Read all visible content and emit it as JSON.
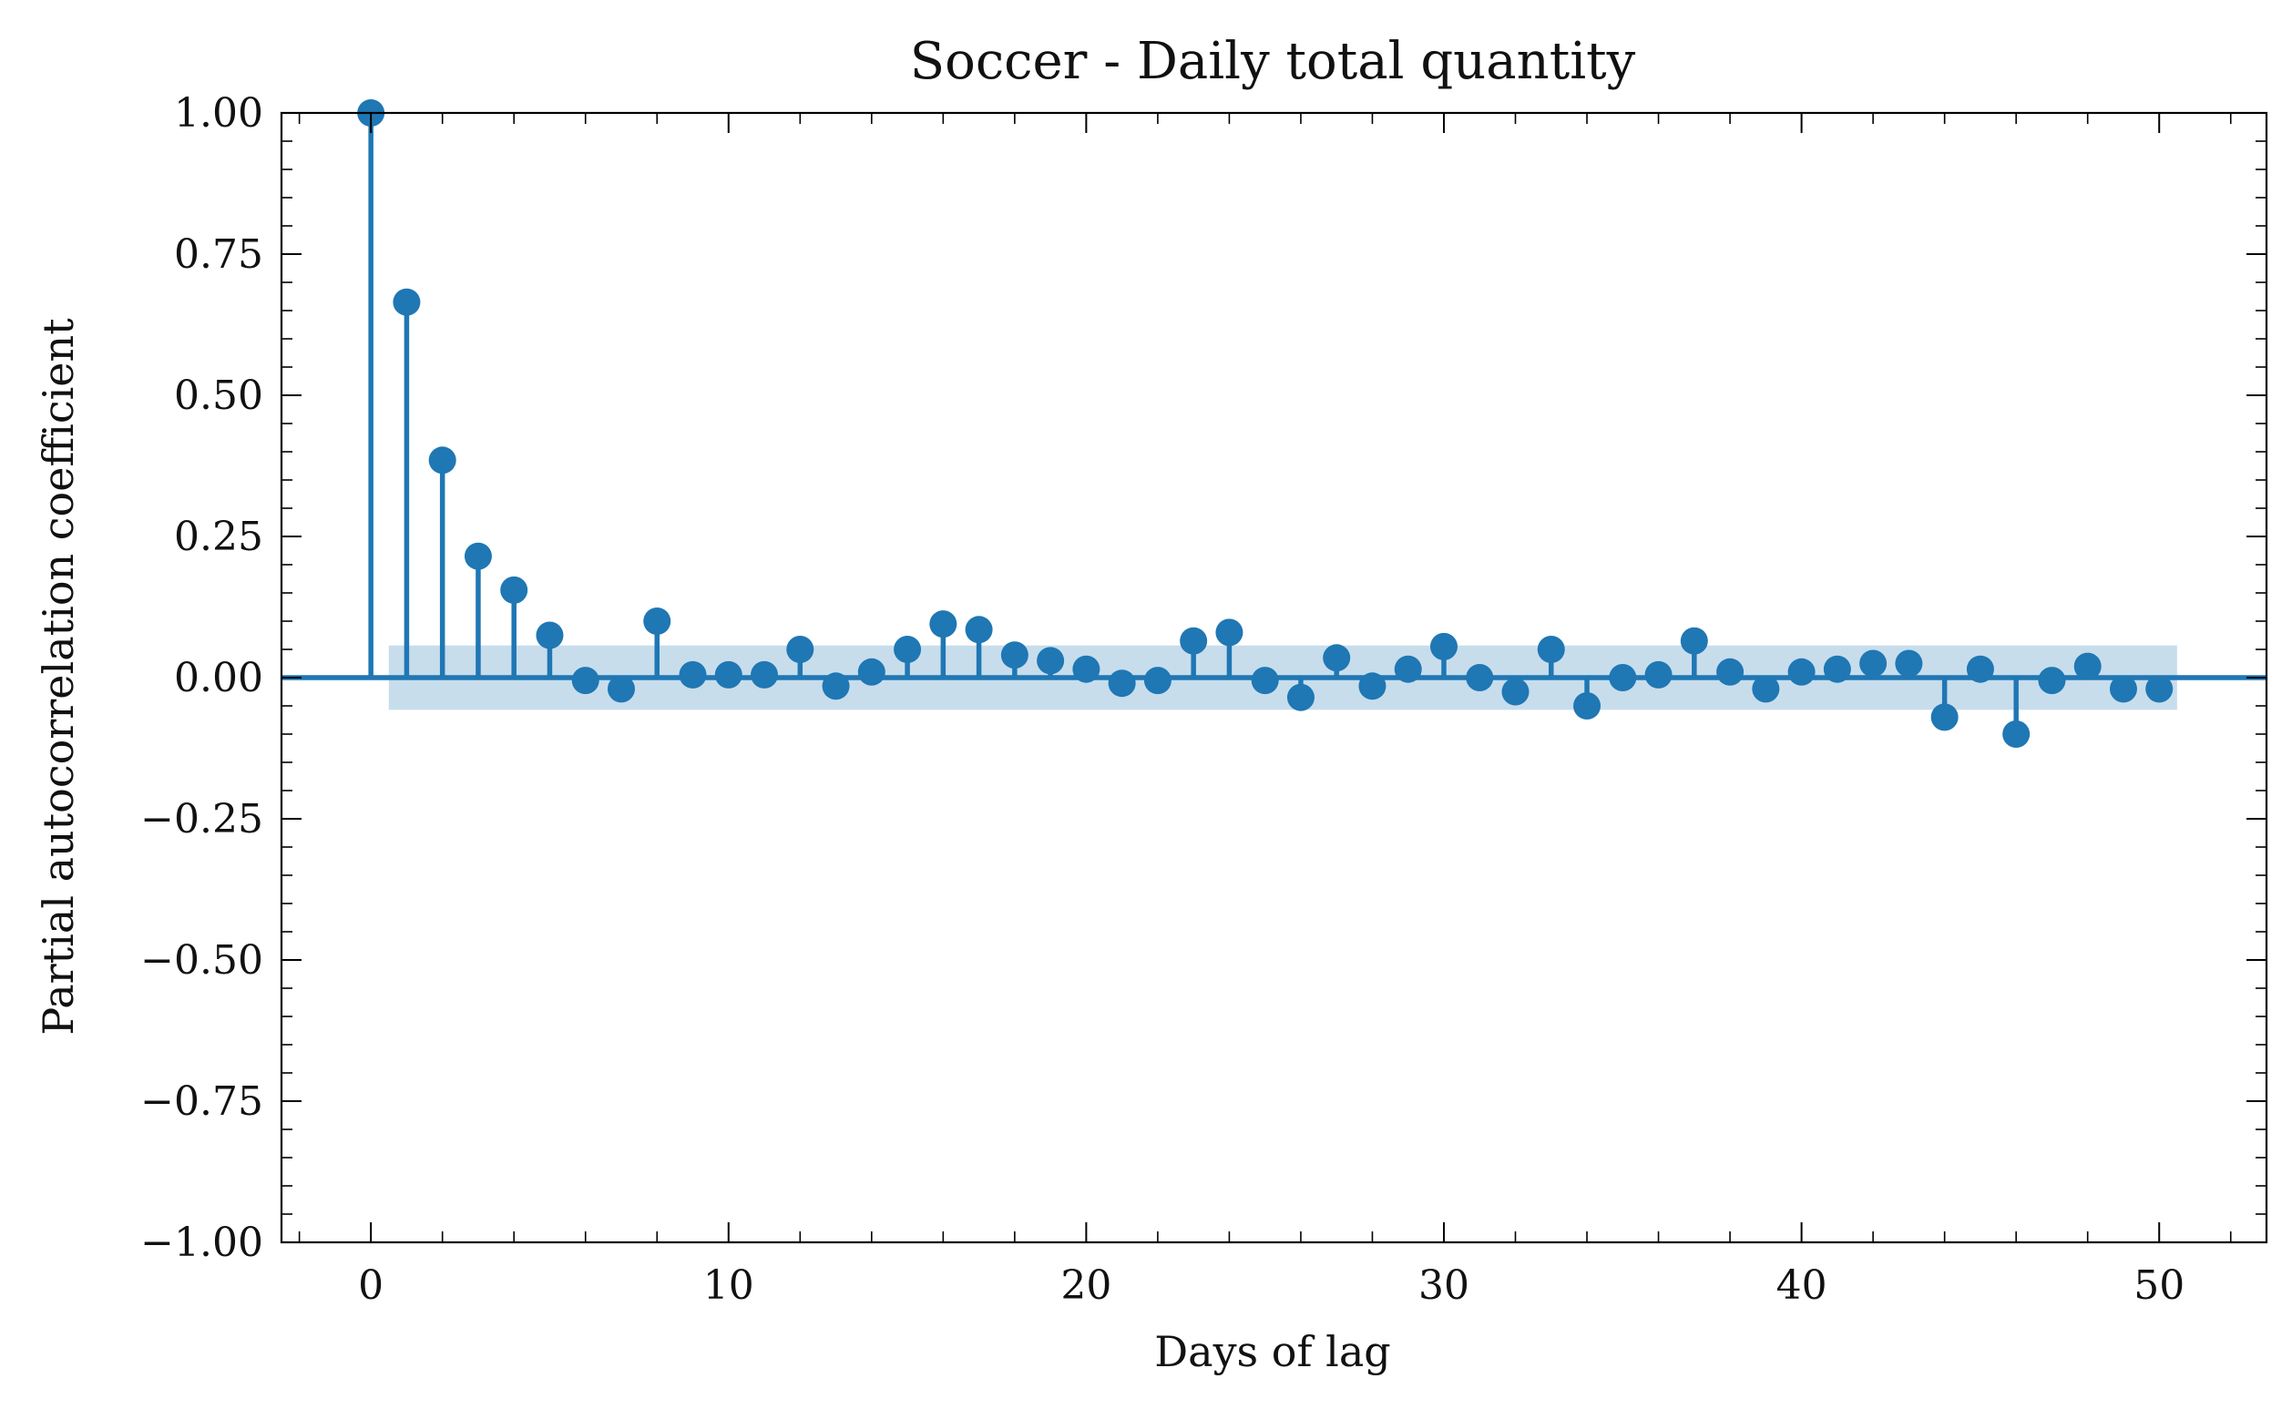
{
  "chart_data": {
    "type": "stem",
    "title": "Soccer - Daily total quantity",
    "xlabel": "Days of lag",
    "ylabel": "Partial autocorrelation coefficient",
    "xlim": [
      -2.5,
      53
    ],
    "ylim": [
      -1.0,
      1.0
    ],
    "x_ticks": [
      0,
      10,
      20,
      30,
      40,
      50
    ],
    "x_tick_labels": [
      "0",
      "10",
      "20",
      "30",
      "40",
      "50"
    ],
    "y_ticks": [
      1.0,
      0.75,
      0.5,
      0.25,
      0.0,
      -0.25,
      -0.5,
      -0.75,
      -1.0
    ],
    "y_tick_labels": [
      "1.00",
      "0.75",
      "0.50",
      "0.25",
      "0.00",
      "−0.25",
      "−0.50",
      "−0.75",
      "−1.00"
    ],
    "grid": false,
    "color": "#1f77b4",
    "confidence_band": {
      "x_range": [
        0.5,
        50.5
      ],
      "lower": -0.057,
      "upper": 0.057,
      "color": "#1f77b4",
      "alpha": 0.25
    },
    "series": [
      {
        "x": [
          0,
          1,
          2,
          3,
          4,
          5,
          6,
          7,
          8,
          9,
          10,
          11,
          12,
          13,
          14,
          15,
          16,
          17,
          18,
          19,
          20,
          21,
          22,
          23,
          24,
          25,
          26,
          27,
          28,
          29,
          30,
          31,
          32,
          33,
          34,
          35,
          36,
          37,
          38,
          39,
          40,
          41,
          42,
          43,
          44,
          45,
          46,
          47,
          48,
          49,
          50
        ],
        "values": [
          1.0,
          0.665,
          0.385,
          0.215,
          0.155,
          0.075,
          -0.005,
          -0.02,
          0.1,
          0.005,
          0.005,
          0.005,
          0.05,
          -0.015,
          0.01,
          0.05,
          0.095,
          0.085,
          0.04,
          0.03,
          0.015,
          -0.01,
          -0.005,
          0.065,
          0.08,
          -0.005,
          -0.035,
          0.035,
          -0.015,
          0.015,
          0.055,
          0.0,
          -0.025,
          0.05,
          -0.05,
          0.0,
          0.005,
          0.065,
          0.01,
          -0.02,
          0.01,
          0.015,
          0.025,
          0.025,
          -0.07,
          0.015,
          -0.1,
          -0.005,
          0.02,
          -0.02,
          -0.02
        ]
      }
    ]
  }
}
